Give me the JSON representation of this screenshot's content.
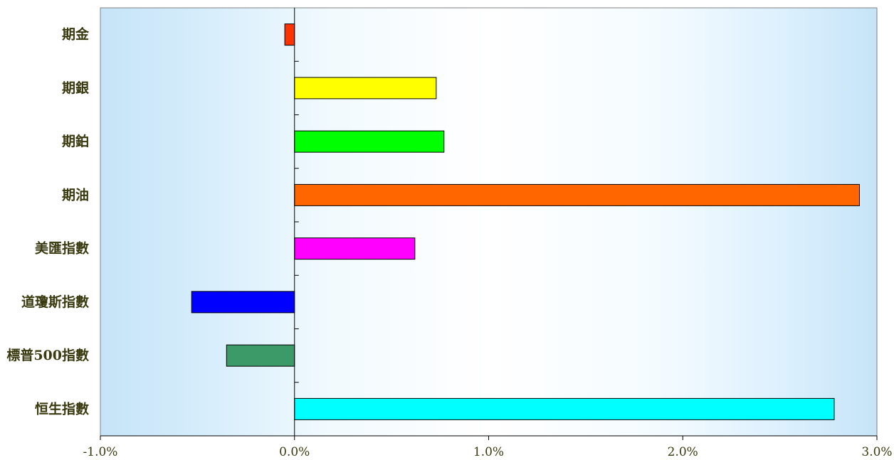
{
  "chart_data": {
    "type": "bar",
    "orientation": "horizontal",
    "categories": [
      "期金",
      "期銀",
      "期鉑",
      "期油",
      "美匯指數",
      "道瓊斯指數",
      "標普500指數",
      "恒生指數"
    ],
    "values": [
      -0.05,
      0.73,
      0.77,
      2.91,
      0.62,
      -0.53,
      -0.35,
      2.78
    ],
    "colors": [
      "#ff3300",
      "#ffff00",
      "#00ff00",
      "#ff6600",
      "#ff00ff",
      "#0000ff",
      "#3c9a68",
      "#00ffff"
    ],
    "xlim": [
      -1.0,
      3.0
    ],
    "xticks": [
      -1.0,
      0.0,
      1.0,
      2.0,
      3.0
    ],
    "xtick_labels": [
      "-1.0%",
      "0.0%",
      "1.0%",
      "2.0%",
      "3.0%"
    ],
    "title": "",
    "xlabel": "",
    "ylabel": "",
    "grid": false,
    "legend": "none"
  }
}
